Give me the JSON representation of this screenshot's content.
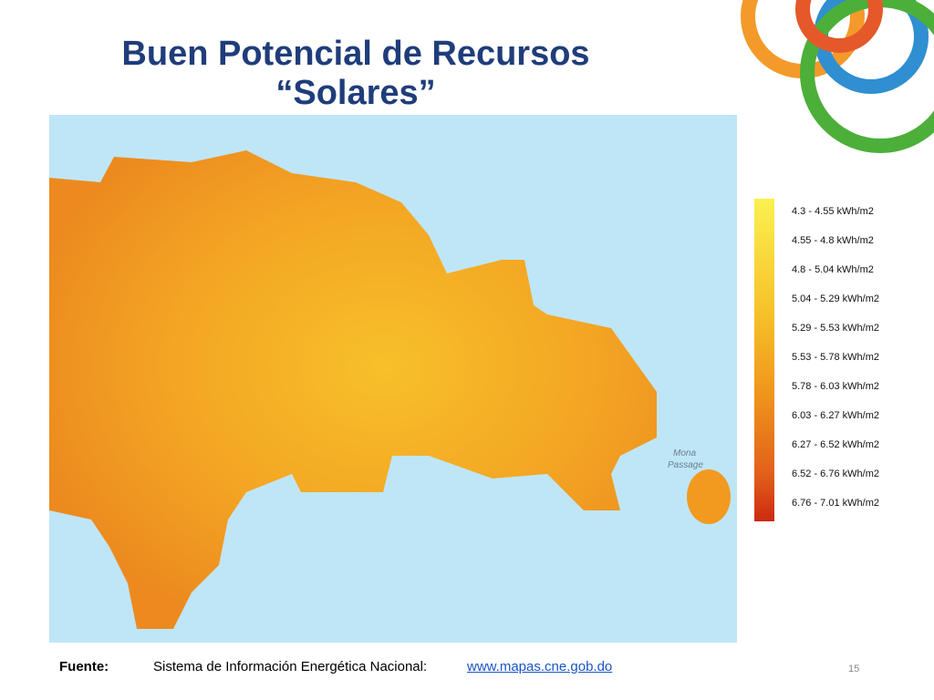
{
  "header": {
    "title_lines": [
      "Buen Potencial de Recursos",
      "“Solares”"
    ]
  },
  "map": {
    "labels": [
      "Mona",
      "Passage"
    ]
  },
  "legend": {
    "items": [
      "4.3 - 4.55 kWh/m2",
      "4.55 - 4.8 kWh/m2",
      "4.8 - 5.04 kWh/m2",
      "5.04 - 5.29 kWh/m2",
      "5.29 - 5.53 kWh/m2",
      "5.53 - 5.78 kWh/m2",
      "5.78 - 6.03 kWh/m2",
      "6.03 - 6.27 kWh/m2",
      "6.27 - 6.52 kWh/m2",
      "6.52 - 6.76 kWh/m2",
      "6.76 - 7.01 kWh/m2"
    ]
  },
  "footer": {
    "source_label": "Fuente:",
    "source_text": "Sistema de Información Energética Nacional:",
    "source_link": "www.mapas.cne.gob.do",
    "page_number": "15"
  }
}
